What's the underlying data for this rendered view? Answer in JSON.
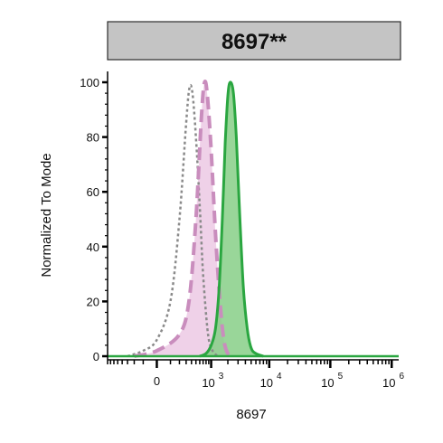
{
  "chart_data": {
    "type": "area",
    "title": "8697**",
    "xlabel": "8697",
    "ylabel": "Normalized To Mode",
    "x_scale": "biexponential",
    "ylim": [
      0,
      100
    ],
    "y_ticks": [
      "0",
      "20",
      "40",
      "60",
      "80",
      "100"
    ],
    "x_ticks": [
      {
        "base": "0",
        "exp": ""
      },
      {
        "base": "10",
        "exp": "3"
      },
      {
        "base": "10",
        "exp": "4"
      },
      {
        "base": "10",
        "exp": "5"
      },
      {
        "base": "10",
        "exp": "6"
      }
    ],
    "grid": false,
    "legend": "none",
    "series": [
      {
        "style": "dotted",
        "line_color": "#8a8a8a",
        "fill_color": "none",
        "points": [
          [
            -300,
            0
          ],
          [
            -100,
            2
          ],
          [
            0,
            6
          ],
          [
            100,
            20
          ],
          [
            200,
            50
          ],
          [
            300,
            85
          ],
          [
            360,
            98
          ],
          [
            420,
            96
          ],
          [
            500,
            80
          ],
          [
            600,
            55
          ],
          [
            700,
            30
          ],
          [
            850,
            10
          ],
          [
            1000,
            3
          ],
          [
            1300,
            0
          ]
        ]
      },
      {
        "style": "dashed",
        "line_color": "#c98dbd",
        "fill_color": "#ecc9e4",
        "points": [
          [
            -200,
            0
          ],
          [
            0,
            2
          ],
          [
            200,
            8
          ],
          [
            350,
            20
          ],
          [
            500,
            50
          ],
          [
            650,
            88
          ],
          [
            750,
            100
          ],
          [
            850,
            95
          ],
          [
            1000,
            75
          ],
          [
            1200,
            45
          ],
          [
            1450,
            20
          ],
          [
            1700,
            6
          ],
          [
            2000,
            1
          ],
          [
            2500,
            0
          ]
        ]
      },
      {
        "style": "solid",
        "line_color": "#2aa640",
        "fill_color": "#87cf87",
        "points": [
          [
            600,
            0
          ],
          [
            800,
            1
          ],
          [
            1000,
            4
          ],
          [
            1200,
            10
          ],
          [
            1400,
            25
          ],
          [
            1600,
            50
          ],
          [
            1800,
            78
          ],
          [
            2000,
            95
          ],
          [
            2200,
            100
          ],
          [
            2500,
            96
          ],
          [
            2800,
            80
          ],
          [
            3200,
            52
          ],
          [
            3700,
            25
          ],
          [
            4300,
            10
          ],
          [
            5000,
            3
          ],
          [
            6000,
            1
          ],
          [
            8000,
            0
          ]
        ]
      }
    ]
  }
}
